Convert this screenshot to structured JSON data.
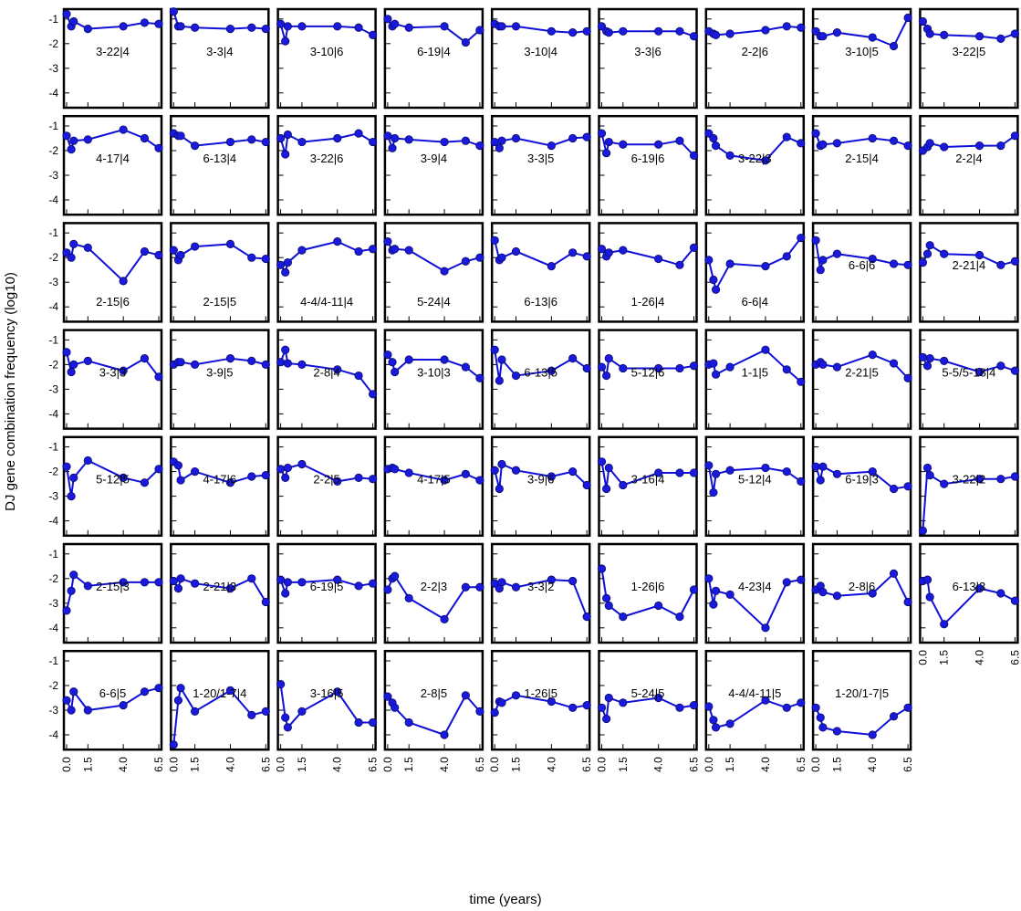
{
  "chart_data": {
    "type": "line",
    "xlabel": "time (years)",
    "ylabel": "DJ gene combination frequency (log10)",
    "x_ticks": [
      "0.0",
      "1.5",
      "4.0",
      "6.5"
    ],
    "y_ticks": [
      "-1",
      "-2",
      "-3",
      "-4"
    ],
    "xlim": [
      0.0,
      6.5
    ],
    "ylim": [
      -4.6,
      -0.6
    ],
    "grid": false,
    "line_color": "#1010d8",
    "marker_color": "#1a1adf",
    "x": [
      0.0,
      0.33,
      0.5,
      1.5,
      4.0,
      5.5,
      6.5
    ],
    "panels": [
      {
        "label": "3-22|4",
        "values": [
          -0.8,
          -1.3,
          -1.1,
          -1.4,
          -1.3,
          -1.15,
          -1.2
        ],
        "label_row": "upper"
      },
      {
        "label": "3-3|4",
        "values": [
          -0.7,
          -1.3,
          -1.3,
          -1.35,
          -1.4,
          -1.35,
          -1.4
        ],
        "label_row": "upper"
      },
      {
        "label": "3-10|6",
        "values": [
          -1.2,
          -1.9,
          -1.3,
          -1.3,
          -1.3,
          -1.35,
          -1.65
        ],
        "label_row": "upper"
      },
      {
        "label": "6-19|4",
        "values": [
          -1.0,
          -1.3,
          -1.2,
          -1.35,
          -1.3,
          -1.95,
          -1.45
        ],
        "label_row": "upper"
      },
      {
        "label": "3-10|4",
        "values": [
          -1.2,
          -1.3,
          -1.3,
          -1.3,
          -1.5,
          -1.55,
          -1.5
        ],
        "label_row": "upper"
      },
      {
        "label": "3-3|6",
        "values": [
          -1.3,
          -1.5,
          -1.55,
          -1.5,
          -1.5,
          -1.5,
          -1.7
        ],
        "label_row": "upper"
      },
      {
        "label": "2-2|6",
        "values": [
          -1.5,
          -1.6,
          -1.65,
          -1.6,
          -1.45,
          -1.3,
          -1.35
        ],
        "label_row": "upper"
      },
      {
        "label": "3-10|5",
        "values": [
          -1.5,
          -1.7,
          -1.7,
          -1.55,
          -1.75,
          -2.1,
          -0.95
        ],
        "label_row": "upper"
      },
      {
        "label": "3-22|5",
        "values": [
          -1.1,
          -1.4,
          -1.6,
          -1.65,
          -1.7,
          -1.8,
          -1.6
        ],
        "label_row": "upper"
      },
      {
        "label": "4-17|4",
        "values": [
          -1.4,
          -1.95,
          -1.6,
          -1.55,
          -1.15,
          -1.5,
          -1.9
        ],
        "label_row": "upper"
      },
      {
        "label": "6-13|4",
        "values": [
          -1.3,
          -1.4,
          -1.4,
          -1.8,
          -1.65,
          -1.55,
          -1.65
        ],
        "label_row": "upper"
      },
      {
        "label": "3-22|6",
        "values": [
          -1.5,
          -2.15,
          -1.35,
          -1.65,
          -1.5,
          -1.3,
          -1.65
        ],
        "label_row": "upper"
      },
      {
        "label": "3-9|4",
        "values": [
          -1.4,
          -1.9,
          -1.5,
          -1.55,
          -1.65,
          -1.6,
          -1.8
        ],
        "label_row": "upper"
      },
      {
        "label": "3-3|5",
        "values": [
          -1.65,
          -1.9,
          -1.6,
          -1.5,
          -1.8,
          -1.5,
          -1.45
        ],
        "label_row": "upper"
      },
      {
        "label": "6-19|6",
        "values": [
          -1.3,
          -2.1,
          -1.65,
          -1.75,
          -1.75,
          -1.6,
          -2.2
        ],
        "label_row": "upper"
      },
      {
        "label": "3-22|3",
        "values": [
          -1.3,
          -1.5,
          -1.8,
          -2.2,
          -2.4,
          -1.45,
          -1.7
        ],
        "label_row": "upper"
      },
      {
        "label": "2-15|4",
        "values": [
          -1.3,
          -1.8,
          -1.75,
          -1.7,
          -1.5,
          -1.6,
          -1.8
        ],
        "label_row": "upper"
      },
      {
        "label": "2-2|4",
        "values": [
          -2.0,
          -1.85,
          -1.7,
          -1.85,
          -1.8,
          -1.8,
          -1.4
        ],
        "label_row": "upper"
      },
      {
        "label": "2-15|6",
        "values": [
          -1.8,
          -2.0,
          -1.45,
          -1.6,
          -2.95,
          -1.75,
          -1.9
        ],
        "label_row": "lower"
      },
      {
        "label": "2-15|5",
        "values": [
          -1.7,
          -2.1,
          -1.9,
          -1.55,
          -1.45,
          -2.0,
          -2.05
        ],
        "label_row": "lower"
      },
      {
        "label": "4-4/4-11|4",
        "values": [
          -2.3,
          -2.6,
          -2.2,
          -1.7,
          -1.35,
          -1.75,
          -1.65
        ],
        "label_row": "lower"
      },
      {
        "label": "5-24|4",
        "values": [
          -1.35,
          -1.7,
          -1.65,
          -1.7,
          -2.55,
          -2.15,
          -2.0
        ],
        "label_row": "lower"
      },
      {
        "label": "6-13|6",
        "values": [
          -1.3,
          -2.1,
          -2.0,
          -1.75,
          -2.35,
          -1.8,
          -1.95
        ],
        "label_row": "lower"
      },
      {
        "label": "1-26|4",
        "values": [
          -1.65,
          -1.95,
          -1.8,
          -1.7,
          -2.05,
          -2.3,
          -1.6
        ],
        "label_row": "lower"
      },
      {
        "label": "6-6|4",
        "values": [
          -2.1,
          -2.9,
          -3.3,
          -2.25,
          -2.35,
          -1.95,
          -1.2
        ],
        "label_row": "lower"
      },
      {
        "label": "6-6|6",
        "values": [
          -1.3,
          -2.5,
          -2.1,
          -1.85,
          -2.05,
          -2.25,
          -2.3
        ],
        "label_row": "upper"
      },
      {
        "label": "2-21|4",
        "values": [
          -2.2,
          -1.85,
          -1.5,
          -1.85,
          -1.9,
          -2.3,
          -2.15
        ],
        "label_row": "upper"
      },
      {
        "label": "3-3|3",
        "values": [
          -1.5,
          -2.3,
          -2.0,
          -1.85,
          -2.25,
          -1.75,
          -2.5
        ],
        "label_row": "upper"
      },
      {
        "label": "3-9|5",
        "values": [
          -2.0,
          -1.9,
          -1.9,
          -2.0,
          -1.75,
          -1.85,
          -2.0
        ],
        "label_row": "upper"
      },
      {
        "label": "2-8|4",
        "values": [
          -1.9,
          -1.4,
          -1.95,
          -2.0,
          -2.2,
          -2.45,
          -3.2
        ],
        "label_row": "upper"
      },
      {
        "label": "3-10|3",
        "values": [
          -1.6,
          -1.9,
          -2.3,
          -1.8,
          -1.8,
          -2.1,
          -2.55
        ],
        "label_row": "upper"
      },
      {
        "label": "6-13|5",
        "values": [
          -1.4,
          -2.65,
          -1.8,
          -2.45,
          -2.25,
          -1.75,
          -2.15
        ],
        "label_row": "upper"
      },
      {
        "label": "5-12|6",
        "values": [
          -2.1,
          -2.45,
          -1.75,
          -2.15,
          -2.15,
          -2.15,
          -2.05
        ],
        "label_row": "upper"
      },
      {
        "label": "1-1|5",
        "values": [
          -2.0,
          -1.95,
          -2.4,
          -2.1,
          -1.4,
          -2.2,
          -2.7
        ],
        "label_row": "upper"
      },
      {
        "label": "2-21|5",
        "values": [
          -2.0,
          -1.9,
          -2.0,
          -2.1,
          -1.6,
          -1.95,
          -2.55
        ],
        "label_row": "upper"
      },
      {
        "label": "5-5/5-18|4",
        "values": [
          -1.7,
          -2.05,
          -1.75,
          -1.85,
          -2.3,
          -2.05,
          -2.25
        ],
        "label_row": "upper"
      },
      {
        "label": "5-12|5",
        "values": [
          -1.8,
          -3.0,
          -2.25,
          -1.55,
          -2.25,
          -2.45,
          -1.9
        ],
        "label_row": "upper"
      },
      {
        "label": "4-17|6",
        "values": [
          -1.6,
          -1.75,
          -2.35,
          -2.0,
          -2.45,
          -2.2,
          -2.15
        ],
        "label_row": "upper"
      },
      {
        "label": "2-2|5",
        "values": [
          -1.9,
          -2.25,
          -1.85,
          -1.7,
          -2.4,
          -2.25,
          -2.3
        ],
        "label_row": "upper"
      },
      {
        "label": "4-17|5",
        "values": [
          -1.9,
          -1.85,
          -1.9,
          -2.05,
          -2.35,
          -2.1,
          -2.35
        ],
        "label_row": "upper"
      },
      {
        "label": "3-9|6",
        "values": [
          -1.95,
          -2.7,
          -1.7,
          -1.95,
          -2.2,
          -2.0,
          -2.55
        ],
        "label_row": "upper"
      },
      {
        "label": "3-16|4",
        "values": [
          -1.6,
          -2.7,
          -1.85,
          -2.55,
          -2.05,
          -2.05,
          -2.05
        ],
        "label_row": "upper"
      },
      {
        "label": "5-12|4",
        "values": [
          -1.75,
          -2.85,
          -2.1,
          -1.95,
          -1.85,
          -2.0,
          -2.4
        ],
        "label_row": "upper"
      },
      {
        "label": "6-19|3",
        "values": [
          -1.8,
          -2.35,
          -1.8,
          -2.1,
          -2.0,
          -2.7,
          -2.6
        ],
        "label_row": "upper"
      },
      {
        "label": "3-22|2",
        "values": [
          -4.4,
          -1.85,
          -2.15,
          -2.5,
          -2.3,
          -2.3,
          -2.2
        ],
        "label_row": "upper"
      },
      {
        "label": "2-15|3",
        "values": [
          -3.3,
          -2.5,
          -1.85,
          -2.3,
          -2.15,
          -2.15,
          -2.15
        ],
        "label_row": "upper"
      },
      {
        "label": "2-21|3",
        "values": [
          -2.1,
          -2.4,
          -2.0,
          -2.2,
          -2.4,
          -2.0,
          -2.95
        ],
        "label_row": "upper"
      },
      {
        "label": "6-19|5",
        "values": [
          -2.05,
          -2.6,
          -2.15,
          -2.15,
          -2.05,
          -2.3,
          -2.2
        ],
        "label_row": "upper"
      },
      {
        "label": "2-2|3",
        "values": [
          -2.45,
          -2.0,
          -1.9,
          -2.8,
          -3.65,
          -2.35,
          -2.35
        ],
        "label_row": "upper"
      },
      {
        "label": "3-3|2",
        "values": [
          -2.2,
          -2.4,
          -2.15,
          -2.35,
          -2.05,
          -2.1,
          -3.55
        ],
        "label_row": "upper"
      },
      {
        "label": "1-26|6",
        "values": [
          -1.6,
          -2.8,
          -3.1,
          -3.55,
          -3.1,
          -3.55,
          -2.45
        ],
        "label_row": "upper"
      },
      {
        "label": "4-23|4",
        "values": [
          -2.0,
          -3.05,
          -2.5,
          -2.65,
          -4.0,
          -2.15,
          -2.05
        ],
        "label_row": "upper"
      },
      {
        "label": "2-8|6",
        "values": [
          -2.45,
          -2.3,
          -2.55,
          -2.7,
          -2.6,
          -1.8,
          -2.95
        ],
        "label_row": "upper"
      },
      {
        "label": "6-13|3",
        "values": [
          -2.1,
          -2.05,
          -2.75,
          -3.85,
          -2.4,
          -2.6,
          -2.9
        ],
        "label_row": "upper"
      },
      {
        "label": "6-6|5",
        "values": [
          -2.6,
          -3.0,
          -2.25,
          -3.0,
          -2.8,
          -2.25,
          -2.1
        ],
        "label_row": "upper"
      },
      {
        "label": "1-20/1-7|4",
        "values": [
          -4.4,
          -2.6,
          -2.1,
          -3.05,
          -2.2,
          -3.2,
          -3.05
        ],
        "label_row": "upper"
      },
      {
        "label": "3-16|5",
        "values": [
          -1.95,
          -3.3,
          -3.7,
          -3.05,
          -2.25,
          -3.5,
          -3.5
        ],
        "label_row": "upper"
      },
      {
        "label": "2-8|5",
        "values": [
          -2.45,
          -2.7,
          -2.9,
          -3.5,
          -4.0,
          -2.4,
          -3.05
        ],
        "label_row": "upper"
      },
      {
        "label": "1-26|5",
        "values": [
          -3.1,
          -2.65,
          -2.7,
          -2.4,
          -2.65,
          -2.9,
          -2.8
        ],
        "label_row": "upper"
      },
      {
        "label": "5-24|5",
        "values": [
          -2.9,
          -3.35,
          -2.5,
          -2.7,
          -2.5,
          -2.9,
          -2.8
        ],
        "label_row": "upper"
      },
      {
        "label": "4-4/4-11|5",
        "values": [
          -2.85,
          -3.4,
          -3.7,
          -3.55,
          -2.6,
          -2.9,
          -2.7
        ],
        "label_row": "upper"
      },
      {
        "label": "1-20/1-7|5",
        "values": [
          -2.9,
          -3.3,
          -3.7,
          -3.85,
          -4.0,
          -3.25,
          -2.9
        ],
        "label_row": "upper"
      }
    ]
  }
}
